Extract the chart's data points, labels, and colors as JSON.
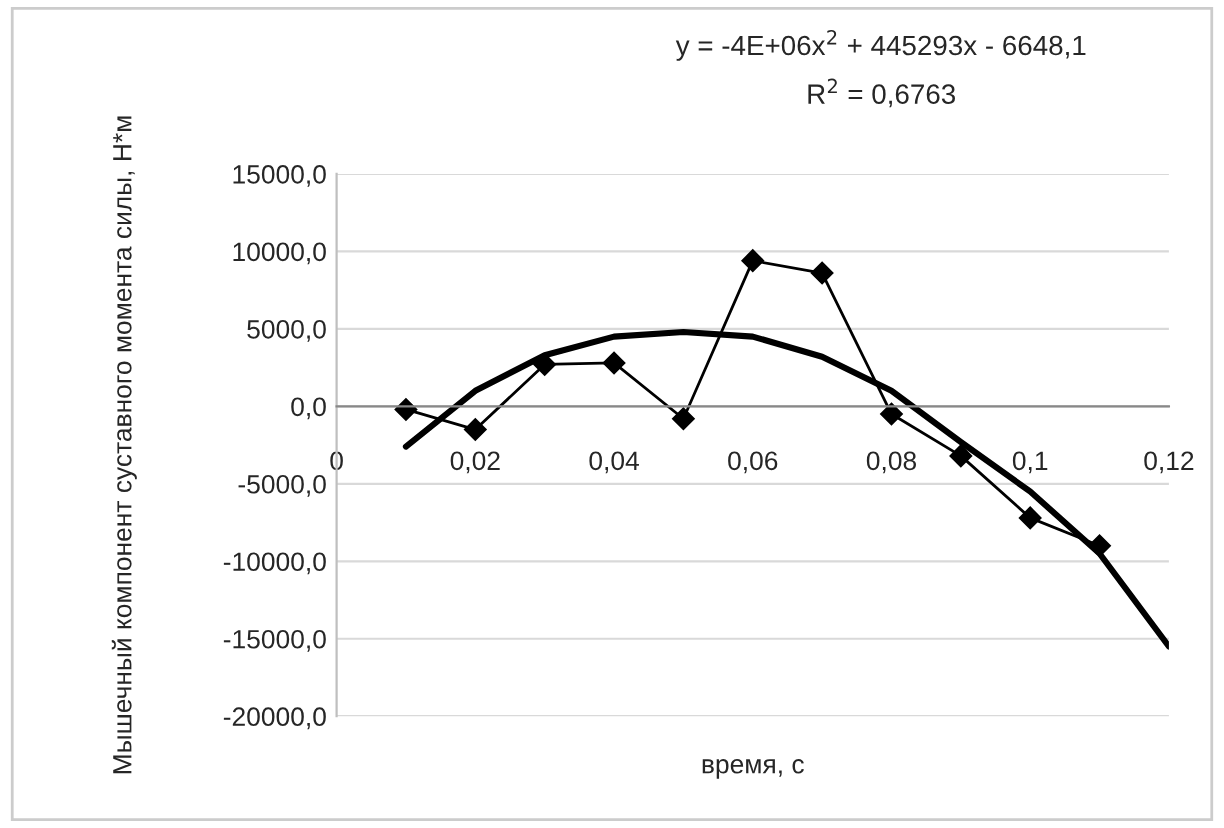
{
  "chart_data": {
    "type": "line",
    "xlabel": "время, с",
    "ylabel": "Мышечный компонент суставного момента силы, Н*м",
    "annotations": [
      "y = -4E+06x$^{2}$ + 445293x - 6648,1",
      "R$^{2}$ = 0,6763"
    ],
    "series": [
      {
        "type": "line",
        "color": "#000000",
        "marker": "diamond",
        "x": [
          0.01,
          0.02,
          0.03,
          0.04,
          0.05,
          0.06,
          0.07,
          0.08,
          0.09,
          0.1,
          0.11
        ],
        "values": [
          -200,
          -1500,
          2700,
          2800,
          -800,
          9400,
          8600,
          -500,
          -3200,
          -7200,
          -9000
        ]
      },
      {
        "type": "line",
        "color": "#000000",
        "marker": "none",
        "x": [
          0.01,
          0.02,
          0.03,
          0.04,
          0.05,
          0.06,
          0.07,
          0.08,
          0.09,
          0.1,
          0.11,
          0.12
        ],
        "values": [
          -2600,
          1000,
          3300,
          4500,
          4800,
          4500,
          3200,
          1000,
          -2300,
          -5500,
          -9500,
          -15500
        ]
      }
    ],
    "xlim": [
      0,
      0.12
    ],
    "ylim": [
      -20000,
      15000
    ],
    "xticks": [
      {
        "value": 0,
        "label": "0"
      },
      {
        "value": 0.02,
        "label": "0,02"
      },
      {
        "value": 0.04,
        "label": "0,04"
      },
      {
        "value": 0.06,
        "label": "0,06"
      },
      {
        "value": 0.08,
        "label": "0,08"
      },
      {
        "value": 0.1,
        "label": "0,1"
      },
      {
        "value": 0.12,
        "label": "0,12"
      }
    ],
    "yticks": [
      {
        "value": -20000,
        "label": "-20000,0"
      },
      {
        "value": -15000,
        "label": "-15000,0"
      },
      {
        "value": -10000,
        "label": "-10000,0"
      },
      {
        "value": -5000,
        "label": "-5000,0"
      },
      {
        "value": 0,
        "label": "0,0"
      },
      {
        "value": 5000,
        "label": "5000,0"
      },
      {
        "value": 10000,
        "label": "10000,0"
      },
      {
        "value": 15000,
        "label": "15000,0"
      }
    ],
    "grid": "y"
  }
}
